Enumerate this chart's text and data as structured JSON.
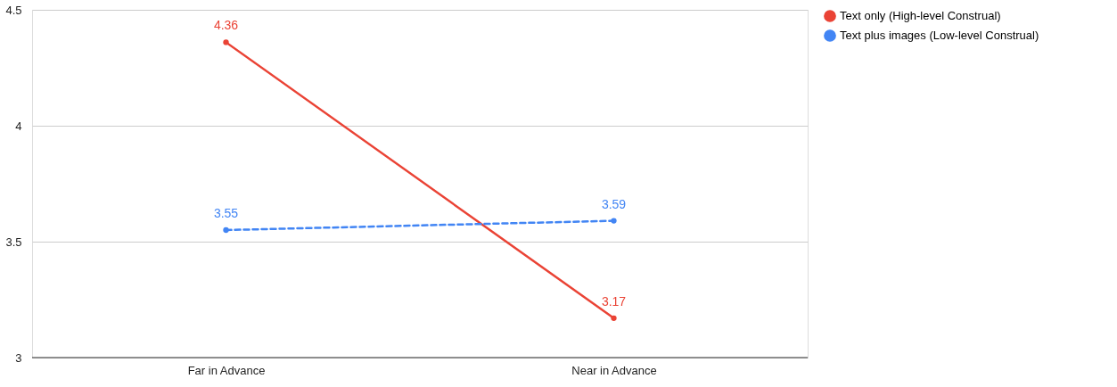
{
  "chart_data": {
    "type": "line",
    "categories": [
      "Far in Advance",
      "Near in Advance"
    ],
    "series": [
      {
        "name": "Text only (High-level Construal)",
        "color": "#ea4335",
        "line_style": "solid",
        "values": [
          4.36,
          3.17
        ]
      },
      {
        "name": "Text plus images (Low-level Construal)",
        "color": "#4285f4",
        "line_style": "dashed",
        "values": [
          3.55,
          3.59
        ]
      }
    ],
    "ylim": [
      3,
      4.5
    ],
    "yticks": [
      3,
      3.5,
      4,
      4.5
    ],
    "grid": "y",
    "legend": "top right",
    "marker": "circle",
    "data_labels": true
  }
}
